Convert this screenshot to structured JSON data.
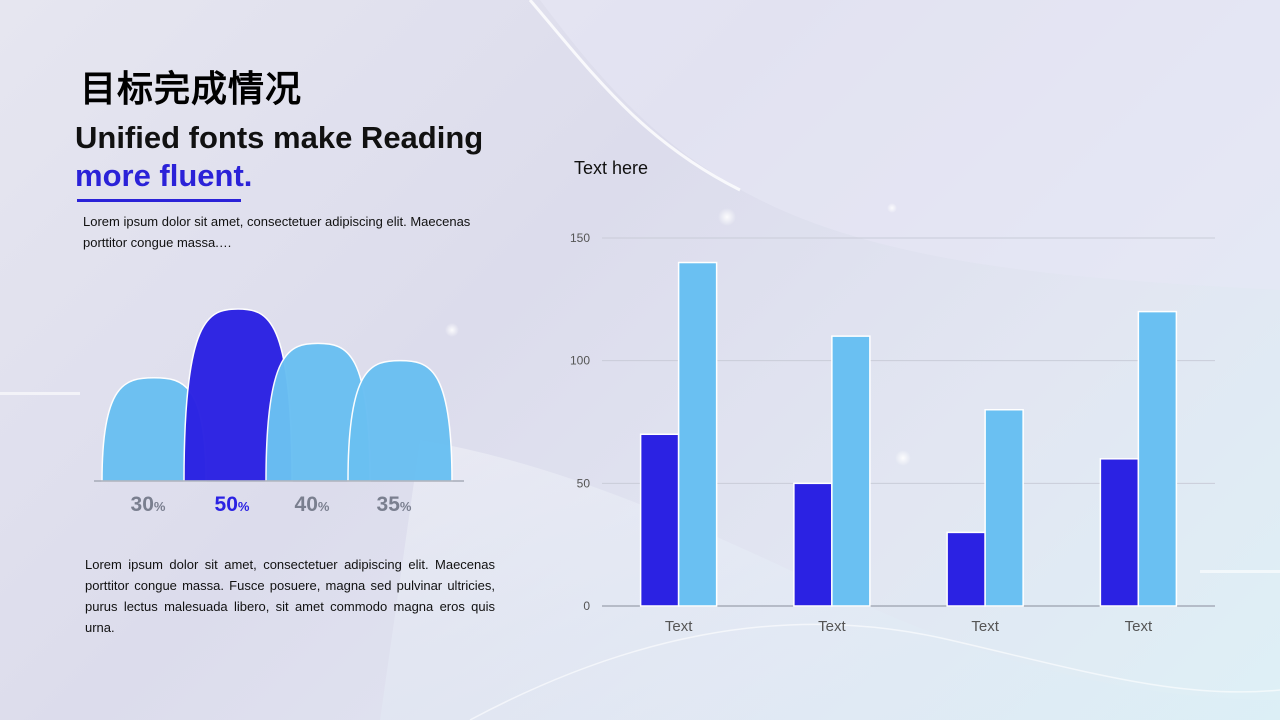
{
  "header": {
    "title_cn": "目标完成情况",
    "headline": "Unified fonts make Reading",
    "headline_accent": "more fluent."
  },
  "text": {
    "paragraph_top": "Lorem ipsum dolor sit amet, consectetuer adipiscing elit. Maecenas porttitor congue massa.…",
    "paragraph_bottom": "Lorem ipsum dolor sit amet, consectetuer adipiscing elit. Maecenas porttitor congue massa. Fusce posuere, magna sed pulvinar ultricies, purus lectus malesuada libero, sit amet commodo magna eros quis urna."
  },
  "colors": {
    "accent_dark": "#2b22e3",
    "accent_light": "#6ac0f2",
    "label_gray": "#7a7f8f"
  },
  "chart_data": [
    {
      "type": "area",
      "categories": [
        "30",
        "50",
        "40",
        "35"
      ],
      "values": [
        30,
        50,
        40,
        35
      ],
      "unit": "%",
      "highlight_index": 1
    },
    {
      "type": "bar",
      "title": "Text here",
      "categories": [
        "Text",
        "Text",
        "Text",
        "Text"
      ],
      "series": [
        {
          "values": [
            70,
            50,
            30,
            60
          ]
        },
        {
          "values": [
            140,
            110,
            80,
            120
          ]
        }
      ],
      "ylim": [
        0,
        150
      ],
      "yticks": [
        "0",
        "50",
        "100",
        "150"
      ],
      "grid": true,
      "legend": "none"
    }
  ]
}
